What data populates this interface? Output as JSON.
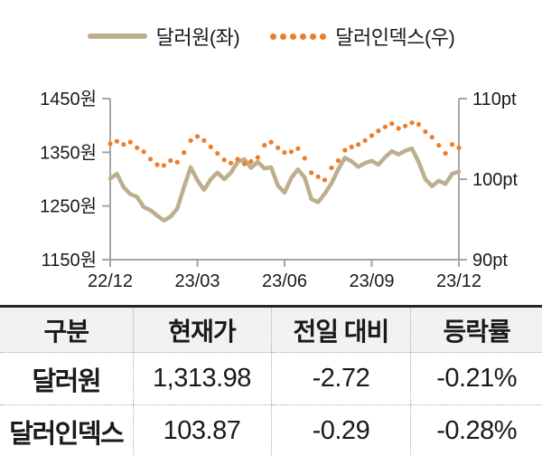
{
  "legend": {
    "series": [
      {
        "label": "달러원(좌)",
        "swatch": "line",
        "color": "#BDAE8D"
      },
      {
        "label": "달러인덱스(우)",
        "swatch": "dots",
        "color": "#EE7D28"
      }
    ]
  },
  "chart_data": {
    "type": "line",
    "title": "",
    "xlabel": "",
    "ylabel_left": "원",
    "ylabel_right": "pt",
    "grid": false,
    "legend_position": "top",
    "x_ticks": [
      "22/12",
      "23/03",
      "23/06",
      "23/09",
      "23/12"
    ],
    "left_axis": {
      "lim": [
        1150,
        1450
      ],
      "ticks": [
        {
          "label": "1450원",
          "value": 1450
        },
        {
          "label": "1350원",
          "value": 1350
        },
        {
          "label": "1250원",
          "value": 1250
        },
        {
          "label": "1150원",
          "value": 1150
        }
      ]
    },
    "right_axis": {
      "lim": [
        90,
        110
      ],
      "ticks": [
        {
          "label": "110pt",
          "value": 110
        },
        {
          "label": "100pt",
          "value": 100
        },
        {
          "label": "90pt",
          "value": 90
        }
      ]
    },
    "series": [
      {
        "name": "달러원(좌)",
        "axis": "left",
        "style": "solid",
        "color": "#BDAE8D",
        "values": [
          1301,
          1310,
          1285,
          1272,
          1267,
          1248,
          1242,
          1232,
          1223,
          1230,
          1245,
          1285,
          1322,
          1298,
          1280,
          1300,
          1312,
          1300,
          1312,
          1332,
          1337,
          1321,
          1332,
          1320,
          1322,
          1288,
          1275,
          1302,
          1318,
          1303,
          1263,
          1257,
          1273,
          1292,
          1318,
          1340,
          1333,
          1323,
          1330,
          1334,
          1327,
          1341,
          1352,
          1346,
          1353,
          1357,
          1332,
          1300,
          1287,
          1297,
          1291,
          1310,
          1314
        ]
      },
      {
        "name": "달러인덱스(우)",
        "axis": "right",
        "style": "dotted",
        "color": "#EE7D28",
        "values": [
          104.4,
          104.7,
          104.3,
          104.6,
          103.9,
          103.4,
          102.5,
          101.8,
          101.7,
          102.3,
          102.1,
          103.3,
          104.8,
          105.3,
          104.8,
          104.0,
          103.2,
          102.4,
          102.0,
          102.5,
          101.9,
          102.2,
          102.7,
          104.2,
          104.6,
          103.9,
          103.3,
          103.4,
          103.8,
          102.6,
          100.8,
          100.3,
          99.9,
          101.4,
          102.3,
          103.6,
          104.0,
          104.3,
          104.8,
          105.4,
          106.0,
          106.5,
          106.9,
          106.3,
          106.6,
          107.0,
          106.8,
          105.9,
          105.2,
          104.2,
          103.2,
          104.3,
          103.9
        ]
      }
    ]
  },
  "table": {
    "headers": [
      "구분",
      "현재가",
      "전일 대비",
      "등락률"
    ],
    "rows": [
      {
        "label": "달러원",
        "values": [
          "1,313.98",
          "-2.72",
          "-0.21%"
        ]
      },
      {
        "label": "달러인덱스",
        "values": [
          "103.87",
          "-0.29",
          "-0.28%"
        ]
      }
    ]
  },
  "colors": {
    "krw_line": "#BDAE8D",
    "dxy_dots": "#EE7D28",
    "axis": "#A6A6A6",
    "header_bg": "#F2F2F2",
    "text": "#1A1A1A"
  }
}
